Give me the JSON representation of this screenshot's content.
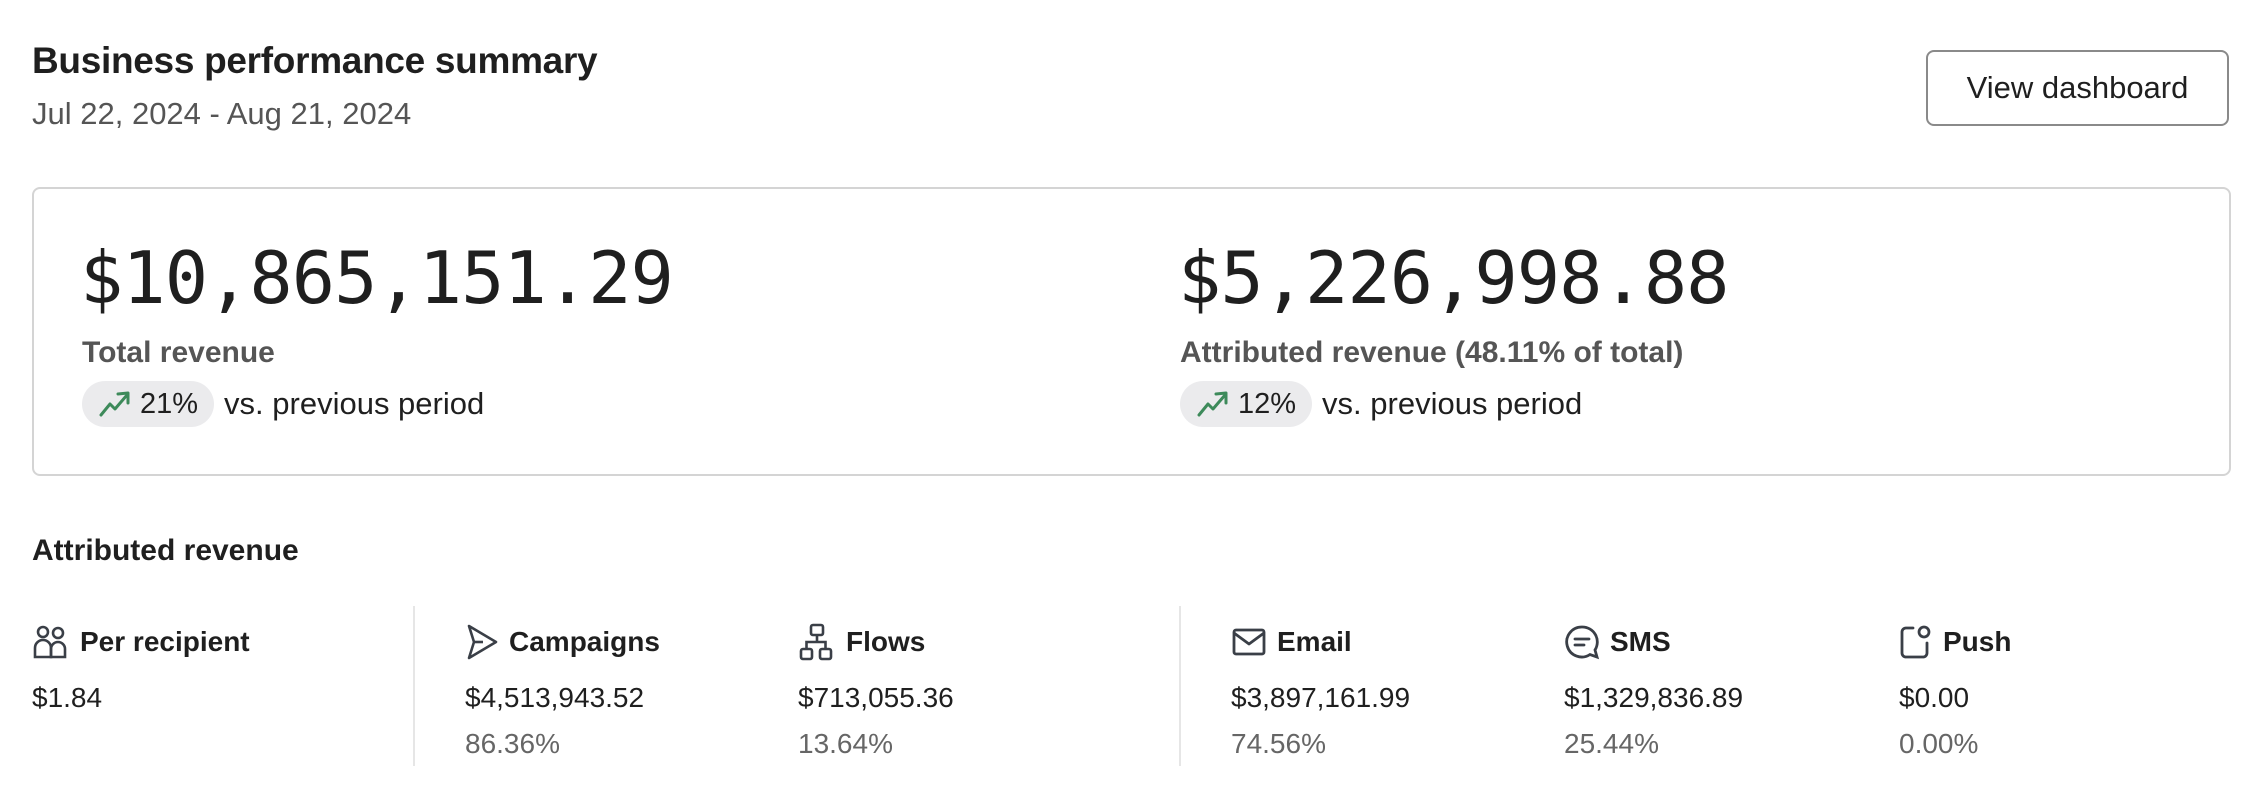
{
  "header": {
    "title": "Business performance summary",
    "date_range": "Jul 22, 2024 - Aug 21, 2024",
    "view_dashboard_label": "View dashboard"
  },
  "summary": {
    "total": {
      "value": "$10,865,151.29",
      "label": "Total revenue",
      "change": "21%",
      "change_icon": "trending-up-icon",
      "comparison": "vs. previous period"
    },
    "attributed": {
      "value": "$5,226,998.88",
      "label": "Attributed revenue (48.11% of total)",
      "change": "12%",
      "change_icon": "trending-up-icon",
      "comparison": "vs. previous period"
    },
    "trend_color": "#3d8a5a"
  },
  "attributed_section": {
    "title": "Attributed revenue",
    "columns": [
      {
        "label": "Per recipient",
        "icon": "users-icon",
        "value": "$1.84",
        "percent": ""
      },
      {
        "label": "Campaigns",
        "icon": "send-icon",
        "value": "$4,513,943.52",
        "percent": "86.36%"
      },
      {
        "label": "Flows",
        "icon": "flow-icon",
        "value": "$713,055.36",
        "percent": "13.64%"
      },
      {
        "label": "Email",
        "icon": "mail-icon",
        "value": "$3,897,161.99",
        "percent": "74.56%"
      },
      {
        "label": "SMS",
        "icon": "message-icon",
        "value": "$1,329,836.89",
        "percent": "25.44%"
      },
      {
        "label": "Push",
        "icon": "push-notification-icon",
        "value": "$0.00",
        "percent": "0.00%"
      }
    ]
  }
}
